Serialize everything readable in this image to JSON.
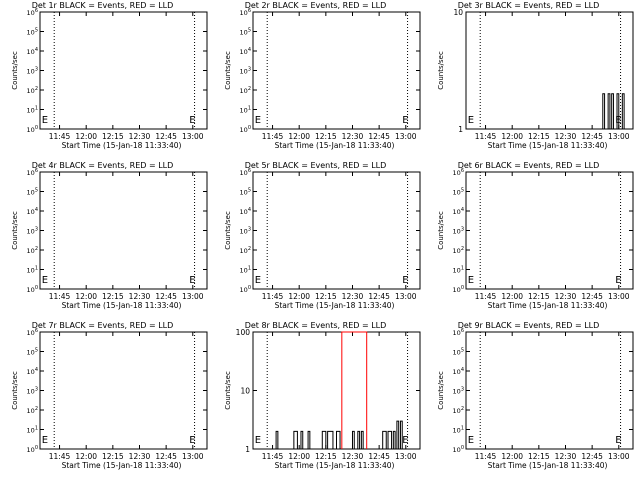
{
  "chart_data": [
    {
      "type": "line",
      "title": "Det 1r BLACK = Events, RED = LLD",
      "xlabel": "Start Time (15-Jan-18 11:33:40)",
      "ylabel": "Counts/sec",
      "log_y": true,
      "xlim": [
        "11:34",
        "13:08"
      ],
      "x_ticks": [
        "11:45",
        "12:00",
        "12:15",
        "12:30",
        "12:45",
        "13:00"
      ],
      "ylim": [
        1,
        1000000
      ],
      "y_ticks": [
        "10^0",
        "10^1",
        "10^2",
        "10^3",
        "10^4",
        "10^5",
        "10^6"
      ],
      "dotted_lines_x": [
        "11:42",
        "13:01"
      ],
      "marker_glyphs": [
        {
          "x": "11:35",
          "text": "E"
        },
        {
          "x": "12:58",
          "text": "E"
        }
      ],
      "series": []
    },
    {
      "type": "line",
      "title": "Det 2r BLACK = Events, RED = LLD",
      "xlabel": "Start Time (15-Jan-18 11:33:40)",
      "ylabel": "Counts/sec",
      "log_y": true,
      "xlim": [
        "11:34",
        "13:08"
      ],
      "x_ticks": [
        "11:45",
        "12:00",
        "12:15",
        "12:30",
        "12:45",
        "13:00"
      ],
      "ylim": [
        1,
        1000000
      ],
      "y_ticks": [
        "10^0",
        "10^1",
        "10^2",
        "10^3",
        "10^4",
        "10^5",
        "10^6"
      ],
      "dotted_lines_x": [
        "11:42",
        "13:01"
      ],
      "marker_glyphs": [
        {
          "x": "11:35",
          "text": "E"
        },
        {
          "x": "12:58",
          "text": "E"
        }
      ],
      "series": []
    },
    {
      "type": "line",
      "title": "Det 3r BLACK = Events, RED = LLD",
      "xlabel": "Start Time (15-Jan-18 11:33:40)",
      "ylabel": "Counts/sec",
      "log_y": true,
      "xlim": [
        "11:34",
        "13:08"
      ],
      "x_ticks": [
        "11:45",
        "12:00",
        "12:15",
        "12:30",
        "12:45",
        "13:00"
      ],
      "ylim": [
        1,
        10
      ],
      "y_ticks": [
        "1",
        "10"
      ],
      "dotted_lines_x": [
        "11:42",
        "13:01"
      ],
      "marker_glyphs": [
        {
          "x": "11:35",
          "text": "E"
        },
        {
          "x": "12:58",
          "text": "E"
        }
      ],
      "series": [
        {
          "color": "#000000",
          "segments": [
            {
              "x_start": "12:51",
              "x_end": "12:52",
              "value": 2
            },
            {
              "x_start": "12:54",
              "x_end": "12:55",
              "value": 2
            },
            {
              "x_start": "12:56",
              "x_end": "12:57",
              "value": 2
            },
            {
              "x_start": "12:59",
              "x_end": "13:00",
              "value": 2
            },
            {
              "x_start": "13:02",
              "x_end": "13:03",
              "value": 2
            }
          ]
        }
      ]
    },
    {
      "type": "line",
      "title": "Det 4r BLACK = Events, RED = LLD",
      "xlabel": "Start Time (15-Jan-18 11:33:40)",
      "ylabel": "Counts/sec",
      "log_y": true,
      "xlim": [
        "11:34",
        "13:08"
      ],
      "x_ticks": [
        "11:45",
        "12:00",
        "12:15",
        "12:30",
        "12:45",
        "13:00"
      ],
      "ylim": [
        1,
        1000000
      ],
      "y_ticks": [
        "10^0",
        "10^1",
        "10^2",
        "10^3",
        "10^4",
        "10^5",
        "10^6"
      ],
      "dotted_lines_x": [
        "11:42",
        "13:01"
      ],
      "marker_glyphs": [
        {
          "x": "11:35",
          "text": "E"
        },
        {
          "x": "12:58",
          "text": "E"
        }
      ],
      "series": []
    },
    {
      "type": "line",
      "title": "Det 5r BLACK = Events, RED = LLD",
      "xlabel": "Start Time (15-Jan-18 11:33:40)",
      "ylabel": "Counts/sec",
      "log_y": true,
      "xlim": [
        "11:34",
        "13:08"
      ],
      "x_ticks": [
        "11:45",
        "12:00",
        "12:15",
        "12:30",
        "12:45",
        "13:00"
      ],
      "ylim": [
        1,
        1000000
      ],
      "y_ticks": [
        "10^0",
        "10^1",
        "10^2",
        "10^3",
        "10^4",
        "10^5",
        "10^6"
      ],
      "dotted_lines_x": [
        "11:42",
        "13:01"
      ],
      "marker_glyphs": [
        {
          "x": "11:35",
          "text": "E"
        },
        {
          "x": "12:58",
          "text": "E"
        }
      ],
      "series": []
    },
    {
      "type": "line",
      "title": "Det 6r BLACK = Events, RED = LLD",
      "xlabel": "Start Time (15-Jan-18 11:33:40)",
      "ylabel": "Counts/sec",
      "log_y": true,
      "xlim": [
        "11:34",
        "13:08"
      ],
      "x_ticks": [
        "11:45",
        "12:00",
        "12:15",
        "12:30",
        "12:45",
        "13:00"
      ],
      "ylim": [
        1,
        1000000
      ],
      "y_ticks": [
        "10^0",
        "10^1",
        "10^2",
        "10^3",
        "10^4",
        "10^5",
        "10^6"
      ],
      "dotted_lines_x": [
        "11:42",
        "13:01"
      ],
      "marker_glyphs": [
        {
          "x": "11:35",
          "text": "E"
        },
        {
          "x": "12:58",
          "text": "E"
        }
      ],
      "series": []
    },
    {
      "type": "line",
      "title": "Det 7r BLACK = Events, RED = LLD",
      "xlabel": "Start Time (15-Jan-18 11:33:40)",
      "ylabel": "Counts/sec",
      "log_y": true,
      "xlim": [
        "11:34",
        "13:08"
      ],
      "x_ticks": [
        "11:45",
        "12:00",
        "12:15",
        "12:30",
        "12:45",
        "13:00"
      ],
      "ylim": [
        1,
        1000000
      ],
      "y_ticks": [
        "10^0",
        "10^1",
        "10^2",
        "10^3",
        "10^4",
        "10^5",
        "10^6"
      ],
      "dotted_lines_x": [
        "11:42",
        "13:01"
      ],
      "marker_glyphs": [
        {
          "x": "11:35",
          "text": "E"
        },
        {
          "x": "12:58",
          "text": "E"
        }
      ],
      "series": []
    },
    {
      "type": "line",
      "title": "Det 8r BLACK = Events, RED = LLD",
      "xlabel": "Start Time (15-Jan-18 11:33:40)",
      "ylabel": "Counts/sec",
      "log_y": true,
      "xlim": [
        "11:34",
        "13:08"
      ],
      "x_ticks": [
        "11:45",
        "12:00",
        "12:15",
        "12:30",
        "12:45",
        "13:00"
      ],
      "ylim": [
        1,
        100
      ],
      "y_ticks": [
        "1",
        "10",
        "100"
      ],
      "dotted_lines_x": [
        "11:42",
        "13:01"
      ],
      "marker_glyphs": [
        {
          "x": "11:35",
          "text": "E"
        },
        {
          "x": "12:58",
          "text": "E"
        }
      ],
      "series": [
        {
          "color": "#000000",
          "segments": [
            {
              "x_start": "11:47",
              "x_end": "11:48",
              "value": 2
            },
            {
              "x_start": "11:57",
              "x_end": "11:59",
              "value": 2
            },
            {
              "x_start": "12:01",
              "x_end": "12:02",
              "value": 2
            },
            {
              "x_start": "12:05",
              "x_end": "12:06",
              "value": 2
            },
            {
              "x_start": "12:13",
              "x_end": "12:15",
              "value": 2
            },
            {
              "x_start": "12:16",
              "x_end": "12:19",
              "value": 2
            },
            {
              "x_start": "12:21",
              "x_end": "12:23",
              "value": 2
            },
            {
              "x_start": "12:30",
              "x_end": "12:31",
              "value": 2
            },
            {
              "x_start": "12:33",
              "x_end": "12:34",
              "value": 2
            },
            {
              "x_start": "12:35",
              "x_end": "12:36",
              "value": 2
            },
            {
              "x_start": "12:47",
              "x_end": "12:49",
              "value": 2
            },
            {
              "x_start": "12:50",
              "x_end": "12:52",
              "value": 2
            },
            {
              "x_start": "12:53",
              "x_end": "12:54",
              "value": 2
            },
            {
              "x_start": "12:55",
              "x_end": "12:56",
              "value": 3
            },
            {
              "x_start": "12:57",
              "x_end": "12:58",
              "value": 3
            }
          ]
        },
        {
          "color": "#ff0000",
          "segments": [
            {
              "x_start": "12:24",
              "x_end": "12:38",
              "value": 100
            }
          ]
        }
      ]
    },
    {
      "type": "line",
      "title": "Det 9r BLACK = Events, RED = LLD",
      "xlabel": "Start Time (15-Jan-18 11:33:40)",
      "ylabel": "Counts/sec",
      "log_y": true,
      "xlim": [
        "11:34",
        "13:08"
      ],
      "x_ticks": [
        "11:45",
        "12:00",
        "12:15",
        "12:30",
        "12:45",
        "13:00"
      ],
      "ylim": [
        1,
        1000000
      ],
      "y_ticks": [
        "10^0",
        "10^1",
        "10^2",
        "10^3",
        "10^4",
        "10^5",
        "10^6"
      ],
      "dotted_lines_x": [
        "11:42",
        "13:01"
      ],
      "marker_glyphs": [
        {
          "x": "11:35",
          "text": "E"
        },
        {
          "x": "12:58",
          "text": "E"
        }
      ],
      "series": []
    }
  ]
}
